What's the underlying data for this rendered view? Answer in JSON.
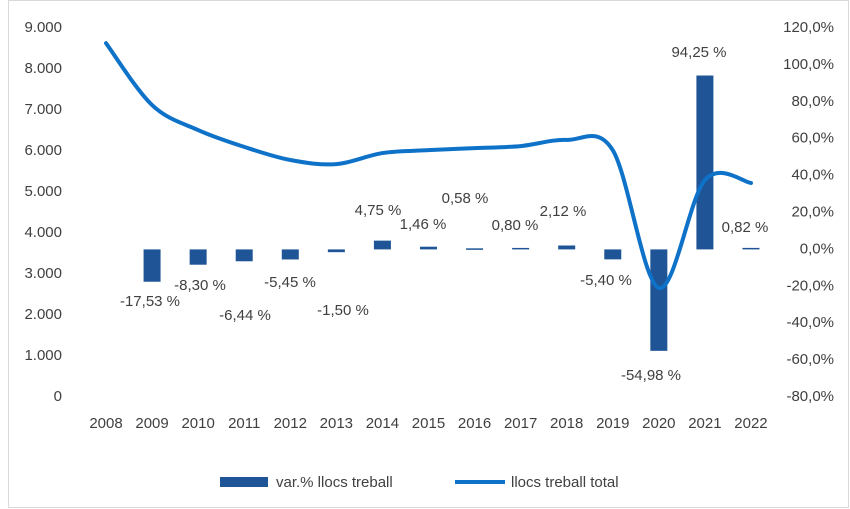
{
  "chart_data": {
    "type": "bar_line",
    "categories": [
      "2008",
      "2009",
      "2010",
      "2011",
      "2012",
      "2013",
      "2014",
      "2015",
      "2016",
      "2017",
      "2018",
      "2019",
      "2020",
      "2021",
      "2022"
    ],
    "series": [
      {
        "name": "var.% llocs treball",
        "type": "bar",
        "axis": "y2",
        "color": "#1f5596",
        "values": [
          null,
          -17.53,
          -8.3,
          -6.44,
          -5.45,
          -1.5,
          4.75,
          1.46,
          0.58,
          0.8,
          2.12,
          -5.4,
          -54.98,
          94.25,
          0.82
        ],
        "value_labels": [
          null,
          "-17,53 %",
          "-8,30 %",
          "-6,44 %",
          "-5,45 %",
          "-1,50 %",
          "4,75 %",
          "1,46 %",
          "0,58 %",
          "0,80 %",
          "2,12 %",
          "-5,40 %",
          "-54,98 %",
          "94,25 %",
          "0,82 %"
        ]
      },
      {
        "name": "llocs treball total",
        "type": "line",
        "axis": "y",
        "color": "#0e72c9",
        "values": [
          8630,
          7120,
          6510,
          6100,
          5780,
          5680,
          5950,
          6020,
          6070,
          6120,
          6270,
          6020,
          2660,
          5290,
          5220
        ]
      }
    ],
    "ylim": [
      0,
      9000
    ],
    "yticks": [
      {
        "value": 0,
        "label": "0"
      },
      {
        "value": 1000,
        "label": "1.000"
      },
      {
        "value": 2000,
        "label": "2.000"
      },
      {
        "value": 3000,
        "label": "3.000"
      },
      {
        "value": 4000,
        "label": "4.000"
      },
      {
        "value": 5000,
        "label": "5.000"
      },
      {
        "value": 6000,
        "label": "6.000"
      },
      {
        "value": 7000,
        "label": "7.000"
      },
      {
        "value": 8000,
        "label": "8.000"
      },
      {
        "value": 9000,
        "label": "9.000"
      }
    ],
    "y2lim": [
      -80,
      120
    ],
    "y2ticks": [
      {
        "value": -80,
        "label": "-80,0%"
      },
      {
        "value": -60,
        "label": "-60,0%"
      },
      {
        "value": -40,
        "label": "-40,0%"
      },
      {
        "value": -20,
        "label": "-20,0%"
      },
      {
        "value": 0,
        "label": "0,0%"
      },
      {
        "value": 20,
        "label": "20,0%"
      },
      {
        "value": 40,
        "label": "40,0%"
      },
      {
        "value": 60,
        "label": "60,0%"
      },
      {
        "value": 80,
        "label": "80,0%"
      },
      {
        "value": 100,
        "label": "100,0%"
      },
      {
        "value": 120,
        "label": "120,0%"
      }
    ],
    "legend": "bottom",
    "grid": false
  }
}
